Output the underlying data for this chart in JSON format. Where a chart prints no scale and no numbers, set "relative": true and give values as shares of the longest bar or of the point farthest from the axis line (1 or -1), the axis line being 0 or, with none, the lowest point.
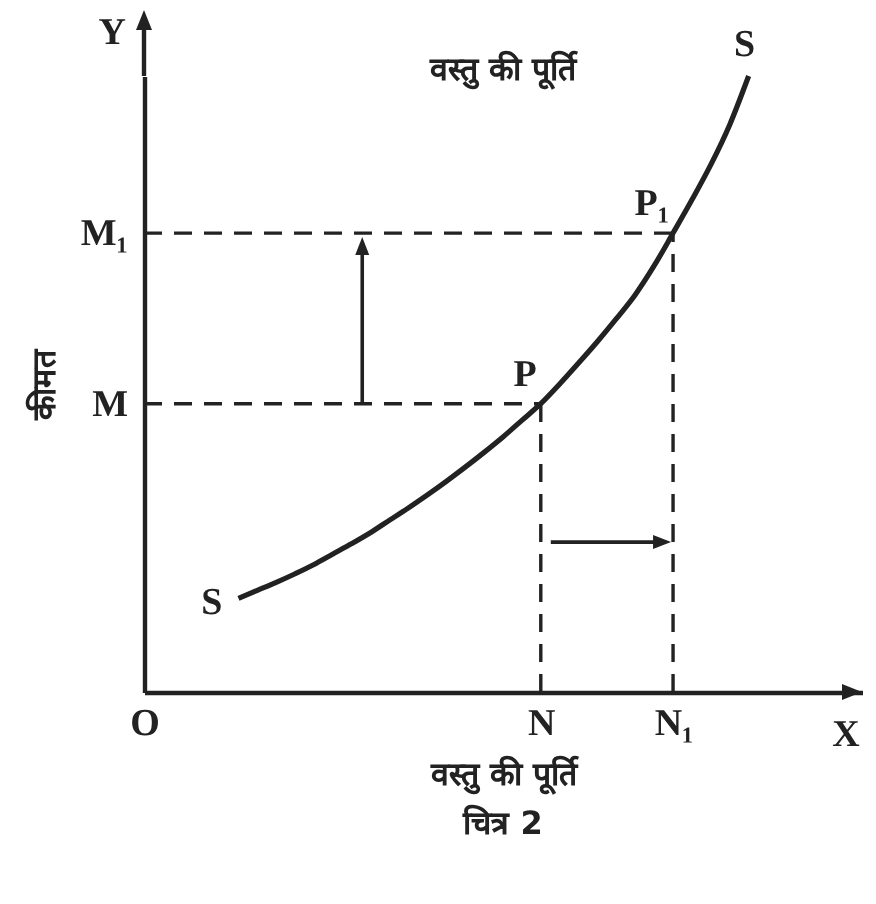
{
  "chart_data": {
    "type": "line",
    "title": "वस्तु की पूर्ति",
    "xlabel": "वस्तु की पूर्ति",
    "ylabel": "कीमत",
    "relative": true,
    "categories": [
      "O",
      null,
      null,
      null,
      null,
      null,
      null,
      null,
      null,
      null,
      null,
      null,
      null,
      null,
      null,
      null,
      null,
      null,
      null,
      null,
      null,
      "N",
      null,
      null,
      null,
      null,
      null,
      null,
      "N₁",
      null,
      null,
      null,
      null,
      null,
      null,
      null,
      null,
      null,
      null
    ],
    "series": [
      {
        "color": "#222222",
        "line_style": "solid",
        "values": [
          null,
          null,
          null,
          null,
          null,
          0.152,
          0.165,
          0.178,
          0.192,
          0.207,
          0.224,
          0.241,
          0.259,
          0.279,
          0.299,
          0.32,
          0.342,
          0.365,
          0.389,
          0.414,
          0.441,
          0.468,
          0.5,
          0.534,
          0.569,
          0.606,
          0.645,
          0.692,
          0.745,
          0.799,
          0.856,
          0.921,
          1,
          null,
          null,
          null,
          null,
          null,
          null
        ]
      }
    ],
    "ref_lines": [
      {
        "axis": "y",
        "value": 0.468,
        "label": "M",
        "color": "#222222",
        "line_style": "dashed"
      },
      {
        "axis": "y",
        "value": 0.745,
        "label": "M₁",
        "color": "#222222",
        "line_style": "dashed"
      },
      {
        "axis": "x",
        "value": "N",
        "color": "#222222",
        "line_style": "dashed"
      },
      {
        "axis": "x",
        "value": "N₁",
        "color": "#222222",
        "line_style": "dashed"
      }
    ],
    "annotations": [
      {
        "text": "S",
        "y": 1
      },
      {
        "text": "P",
        "x": "N",
        "y": 0.468
      },
      {
        "text": "P₁",
        "x": "N₁",
        "y": 0.745
      },
      "Y",
      "S",
      "X",
      "चित्र 2"
    ]
  }
}
